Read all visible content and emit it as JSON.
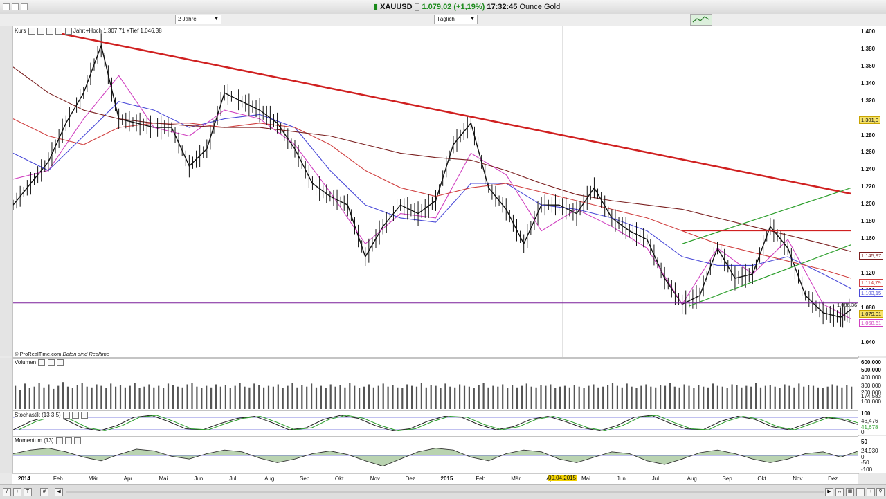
{
  "window": {
    "symbol": "XAUUSD",
    "price_change": "1.079,02 (+1,19%)",
    "time": "17:32:45",
    "instrument": "Ounce Gold"
  },
  "toolbar": {
    "period_select": "2 Jahre",
    "interval_select": "Täglich"
  },
  "main_panel": {
    "label": "Kurs",
    "info": "Jahr:+Hoch 1.307,71 +Tief 1.046,38",
    "footer": "© ProRealTime.com",
    "footer_note": "Daten sind Realtime",
    "level_label": "1.086,36"
  },
  "price_tags": [
    {
      "text": "1.301,0",
      "color": "#c9a400"
    },
    {
      "text": "1.145,97",
      "color": "#7a1f1f"
    },
    {
      "text": "1.114,79",
      "color": "#d04040"
    },
    {
      "text": "1.103,15",
      "color": "#4a4ad8"
    },
    {
      "text": "1.079,01",
      "color": "#c9a400"
    },
    {
      "text": "1.068,61",
      "color": "#d040c0"
    }
  ],
  "volume_panel": {
    "label": "Volumen",
    "ticks": [
      "600.000",
      "500.000",
      "400.000",
      "300.000",
      "200.000",
      "174.583",
      "100.000"
    ]
  },
  "stoch_panel": {
    "label": "Stochastik (13 3 5)",
    "ticks": [
      "100",
      "46,476",
      "41,678",
      "0"
    ]
  },
  "momentum_panel": {
    "label": "Momentum (13)",
    "ticks": [
      "50",
      "24,930",
      "0",
      "-50",
      "-100"
    ]
  },
  "x_highlight": "09.04.2015",
  "chart_data": {
    "type": "line",
    "title": "XAUUSD",
    "subtitle": "Ounce Gold",
    "y_ticks": [
      "1.400",
      "1.380",
      "1.360",
      "1.340",
      "1.320",
      "1.300",
      "1.280",
      "1.260",
      "1.240",
      "1.220",
      "1.200",
      "1.180",
      "1.160",
      "1.140",
      "1.120",
      "1.100",
      "1.080",
      "1.060",
      "1.040"
    ],
    "x_ticks": [
      {
        "label": "2014",
        "bold": true
      },
      {
        "label": "Feb"
      },
      {
        "label": "Mär"
      },
      {
        "label": "Apr"
      },
      {
        "label": "Mai"
      },
      {
        "label": "Jun"
      },
      {
        "label": "Jul"
      },
      {
        "label": "Aug"
      },
      {
        "label": "Sep"
      },
      {
        "label": "Okt"
      },
      {
        "label": "Nov"
      },
      {
        "label": "Dez"
      },
      {
        "label": "2015",
        "bold": true
      },
      {
        "label": "Feb"
      },
      {
        "label": "Mär"
      },
      {
        "label": "Apr"
      },
      {
        "label": "Mai"
      },
      {
        "label": "Jun"
      },
      {
        "label": "Jul"
      },
      {
        "label": "Aug"
      },
      {
        "label": "Sep"
      },
      {
        "label": "Okt"
      },
      {
        "label": "Nov"
      },
      {
        "label": "Dez"
      }
    ],
    "ylim": [
      1030,
      1400
    ],
    "xlim": [
      0,
      24
    ],
    "series": [
      {
        "name": "Kurs",
        "color": "#111111",
        "x": [
          0.0,
          0.5,
          1.0,
          1.5,
          2.0,
          2.5,
          3.0,
          3.5,
          4.0,
          4.5,
          5.0,
          5.5,
          6.0,
          6.5,
          7.0,
          7.5,
          8.0,
          8.5,
          9.0,
          9.5,
          10.0,
          10.5,
          11.0,
          11.5,
          12.0,
          12.5,
          13.0,
          13.5,
          14.0,
          14.5,
          15.0,
          15.5,
          16.0,
          16.5,
          17.0,
          17.5,
          18.0,
          18.5,
          19.0,
          19.5,
          20.0,
          20.5,
          21.0,
          21.5,
          22.0,
          22.5,
          23.0,
          23.5,
          23.8
        ],
        "values": [
          1200,
          1225,
          1250,
          1295,
          1330,
          1385,
          1300,
          1295,
          1290,
          1290,
          1245,
          1265,
          1330,
          1320,
          1310,
          1295,
          1265,
          1225,
          1210,
          1200,
          1140,
          1175,
          1200,
          1190,
          1205,
          1270,
          1295,
          1220,
          1195,
          1155,
          1200,
          1200,
          1190,
          1220,
          1185,
          1170,
          1160,
          1115,
          1085,
          1095,
          1150,
          1115,
          1120,
          1175,
          1150,
          1095,
          1075,
          1070,
          1079
        ]
      },
      {
        "name": "MA20",
        "color": "#d040c0",
        "x": [
          0,
          1,
          2,
          3,
          4,
          5,
          6,
          7,
          8,
          9,
          10,
          11,
          12,
          13,
          14,
          15,
          16,
          17,
          18,
          19,
          20,
          21,
          22,
          23,
          23.8
        ],
        "values": [
          1230,
          1240,
          1300,
          1350,
          1290,
          1280,
          1310,
          1300,
          1270,
          1215,
          1155,
          1190,
          1185,
          1260,
          1235,
          1170,
          1195,
          1175,
          1150,
          1085,
          1150,
          1120,
          1160,
          1085,
          1068
        ]
      },
      {
        "name": "MA50",
        "color": "#4a4ad8",
        "x": [
          0,
          1,
          2,
          3,
          4,
          5,
          6,
          7,
          8,
          9,
          10,
          11,
          12,
          13,
          14,
          15,
          16,
          17,
          18,
          19,
          20,
          21,
          22,
          23,
          23.8
        ],
        "values": [
          1260,
          1240,
          1280,
          1320,
          1310,
          1290,
          1300,
          1305,
          1290,
          1240,
          1200,
          1185,
          1180,
          1225,
          1225,
          1200,
          1195,
          1185,
          1170,
          1140,
          1130,
          1130,
          1140,
          1120,
          1103
        ]
      },
      {
        "name": "MA100",
        "color": "#d04040",
        "x": [
          0,
          1,
          2,
          3,
          4,
          5,
          6,
          7,
          8,
          9,
          10,
          11,
          12,
          13,
          14,
          15,
          16,
          17,
          18,
          19,
          20,
          21,
          22,
          23,
          23.8
        ],
        "values": [
          1300,
          1280,
          1270,
          1290,
          1295,
          1295,
          1290,
          1295,
          1290,
          1270,
          1240,
          1220,
          1210,
          1220,
          1225,
          1215,
          1205,
          1195,
          1185,
          1170,
          1155,
          1145,
          1135,
          1125,
          1115
        ]
      },
      {
        "name": "MA200",
        "color": "#7a1f1f",
        "x": [
          0,
          1,
          2,
          3,
          4,
          5,
          6,
          7,
          8,
          9,
          10,
          11,
          12,
          13,
          14,
          15,
          16,
          17,
          18,
          19,
          20,
          21,
          22,
          23,
          23.8
        ],
        "values": [
          1360,
          1330,
          1310,
          1300,
          1295,
          1292,
          1290,
          1290,
          1285,
          1280,
          1270,
          1260,
          1255,
          1252,
          1240,
          1225,
          1212,
          1205,
          1200,
          1195,
          1185,
          1175,
          1165,
          1155,
          1146
        ]
      }
    ],
    "trendlines": [
      {
        "color": "#d02020",
        "width": 2.5,
        "points": [
          [
            1.2,
            1400
          ],
          [
            23.8,
            1213
          ]
        ]
      },
      {
        "color": "#2fa02f",
        "width": 1.2,
        "points": [
          [
            19.2,
            1083
          ],
          [
            23.8,
            1154
          ]
        ]
      },
      {
        "color": "#2fa02f",
        "width": 1.2,
        "points": [
          [
            19.0,
            1155
          ],
          [
            23.8,
            1220
          ]
        ]
      },
      {
        "color": "#d02020",
        "width": 1.2,
        "points": [
          [
            19.0,
            1170
          ],
          [
            23.8,
            1170
          ]
        ]
      },
      {
        "color": "#7a1f9a",
        "width": 1.0,
        "points": [
          [
            0,
            1086.36
          ],
          [
            24,
            1086.36
          ]
        ]
      }
    ],
    "volume": [
      310,
      260,
      340,
      280,
      300,
      350,
      290,
      330,
      270,
      310,
      360,
      300,
      280,
      320,
      350,
      300,
      290,
      330,
      310,
      280,
      340,
      300,
      320,
      290,
      310,
      350,
      280,
      300,
      330,
      290,
      310,
      280,
      340,
      320,
      300,
      290,
      330,
      350,
      300,
      280,
      310,
      290,
      330,
      300,
      320,
      280,
      310,
      350,
      300,
      290,
      340,
      320,
      290,
      310,
      300,
      330,
      280,
      310,
      350,
      290,
      320,
      300,
      340,
      290,
      310,
      280,
      330,
      300,
      320,
      290,
      350,
      310,
      280,
      300,
      330,
      290,
      310,
      340,
      300,
      320,
      290,
      280,
      330,
      310,
      300,
      350,
      290,
      320,
      310,
      280,
      340,
      300,
      290,
      330,
      310,
      300,
      280,
      320,
      350,
      290,
      310,
      300,
      330,
      280,
      320,
      290,
      310,
      340,
      300,
      290,
      320,
      310,
      330,
      280,
      300,
      310,
      290,
      320,
      300,
      280,
      310,
      330,
      290,
      300,
      320,
      350,
      310,
      290,
      340,
      300,
      280,
      310,
      330,
      300,
      290,
      320,
      310,
      350,
      300,
      290,
      330,
      310,
      280,
      320,
      300,
      290,
      340,
      310,
      300,
      280,
      330,
      320,
      290,
      310,
      300,
      350,
      290,
      310,
      320,
      300,
      280,
      330,
      310,
      290,
      340,
      300,
      320,
      310,
      290,
      280,
      300,
      330,
      310,
      290,
      320,
      300
    ],
    "stochastic": [
      20,
      60,
      85,
      70,
      30,
      15,
      40,
      80,
      90,
      60,
      25,
      20,
      50,
      75,
      85,
      55,
      20,
      30,
      70,
      90,
      75,
      40,
      15,
      25,
      60,
      85,
      80,
      45,
      20,
      35,
      70,
      85,
      60,
      30,
      15,
      40,
      80,
      90,
      55,
      25,
      20,
      60,
      85,
      70,
      35,
      20,
      50,
      80,
      70,
      45
    ],
    "momentum": [
      10,
      30,
      40,
      20,
      -10,
      -30,
      5,
      35,
      25,
      -5,
      -20,
      10,
      30,
      20,
      -15,
      -40,
      -20,
      10,
      25,
      5,
      -30,
      -60,
      -20,
      20,
      40,
      30,
      -10,
      -30,
      10,
      30,
      20,
      -20,
      -40,
      -10,
      20,
      10,
      -30,
      -50,
      -20,
      15,
      30,
      10,
      -20,
      -40,
      -20,
      10,
      20,
      -10,
      25
    ]
  }
}
